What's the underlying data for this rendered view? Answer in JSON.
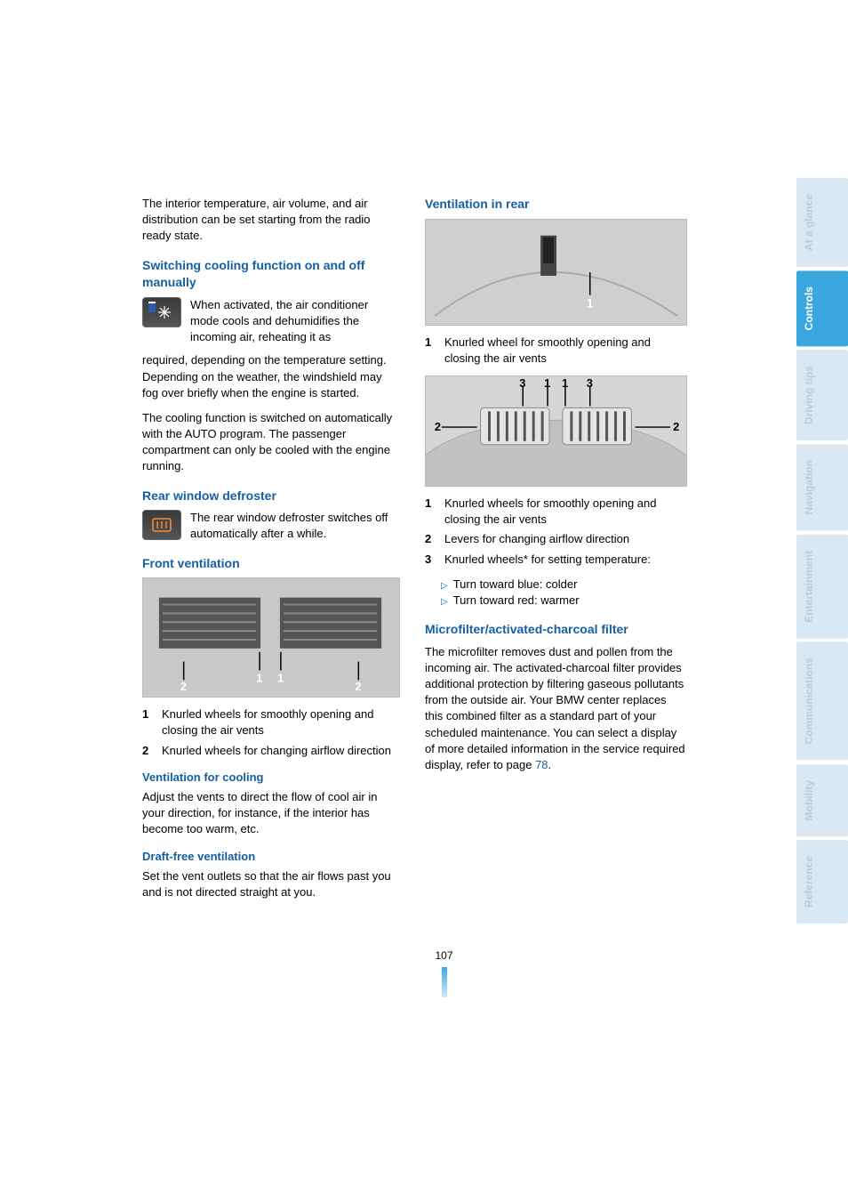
{
  "page_number": "107",
  "left_column": {
    "intro": "The interior temperature, air volume, and air distribution can be set starting from the radio ready state.",
    "cooling": {
      "heading": "Switching cooling function on and off manually",
      "icon_para": "When activated, the air conditioner mode cools and dehumidifies the incoming air, reheating it as",
      "para1": "required, depending on the temperature setting. Depending on the weather, the windshield may fog over briefly when the engine is started.",
      "para2": "The cooling function is switched on automatically with the AUTO program. The passenger compartment can only be cooled with the engine running."
    },
    "defroster": {
      "heading": "Rear window defroster",
      "icon_para": "The rear window defroster switches off automatically after a while."
    },
    "front_vent": {
      "heading": "Front ventilation",
      "item1_num": "1",
      "item1": "Knurled wheels for smoothly opening and closing the air vents",
      "item2_num": "2",
      "item2": "Knurled wheels for changing airflow direction"
    },
    "vent_cooling": {
      "heading": "Ventilation for cooling",
      "para": "Adjust the vents to direct the flow of cool air in your direction, for instance, if the interior has become too warm, etc."
    },
    "draft_free": {
      "heading": "Draft-free ventilation",
      "para": "Set the vent outlets so that the air flows past you and is not directed straight at you."
    }
  },
  "right_column": {
    "rear_vent": {
      "heading": "Ventilation in rear",
      "fig1_caption_num": "1",
      "fig1_caption": "Knurled wheel for smoothly opening and closing the air vents",
      "item1_num": "1",
      "item1": "Knurled wheels for smoothly opening and closing the air vents",
      "item2_num": "2",
      "item2": "Levers for changing airflow direction",
      "item3_num": "3",
      "item3": "Knurled wheels* for setting temperature:",
      "bullet1": "Turn toward blue: colder",
      "bullet2": "Turn toward red: warmer"
    },
    "microfilter": {
      "heading": "Microfilter/activated-charcoal filter",
      "para_before": "The microfilter removes dust and pollen from the incoming air. The activated-charcoal filter provides additional protection by filtering gaseous pollutants from the outside air. Your BMW center replaces this combined filter as a standard part of your scheduled maintenance. You can select a display of more detailed information in the service required display, refer to page ",
      "link": "78",
      "para_after": "."
    }
  },
  "tabs": [
    {
      "label": "At a glance",
      "active": false
    },
    {
      "label": "Controls",
      "active": true
    },
    {
      "label": "Driving tips",
      "active": false
    },
    {
      "label": "Navigation",
      "active": false
    },
    {
      "label": "Entertainment",
      "active": false
    },
    {
      "label": "Communications",
      "active": false
    },
    {
      "label": "Mobility",
      "active": false
    },
    {
      "label": "Reference",
      "active": false
    }
  ],
  "colors": {
    "heading": "#1560a3",
    "tab_active_bg": "#3ba7e0",
    "tab_inactive_bg": "#d9e8f3",
    "tab_inactive_fg": "#b6cee0"
  }
}
